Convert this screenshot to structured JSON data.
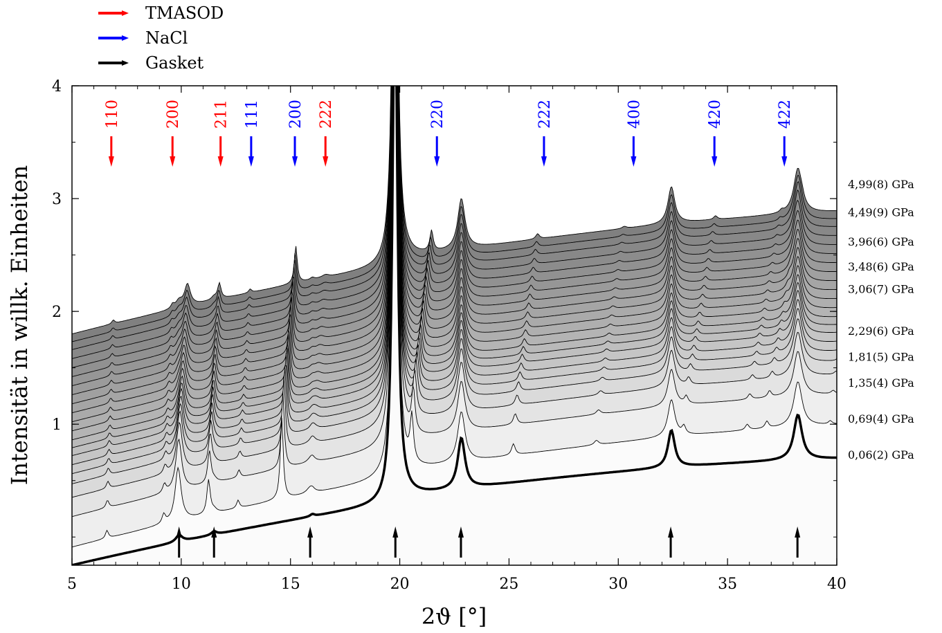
{
  "chart_data": {
    "type": "line",
    "xlabel": "2ϑ [°]",
    "ylabel": "Intensität in willk. Einheiten",
    "xlim": [
      5,
      40
    ],
    "ylim": [
      -0.25,
      4
    ],
    "x_ticks": [
      5,
      10,
      15,
      20,
      25,
      30,
      35,
      40
    ],
    "y_ticks": [
      1,
      2,
      3,
      4
    ],
    "legend": {
      "placement": "top-left",
      "entries": [
        {
          "name": "TMASOD",
          "color": "#ff0000"
        },
        {
          "name": "NaCl",
          "color": "#0000ff"
        },
        {
          "name": "Gasket",
          "color": "#000000"
        }
      ]
    },
    "reflections": [
      {
        "hkl": "110",
        "x": 6.8,
        "phase": "TMASOD",
        "color": "#ff0000"
      },
      {
        "hkl": "200",
        "x": 9.6,
        "phase": "TMASOD",
        "color": "#ff0000"
      },
      {
        "hkl": "211",
        "x": 11.8,
        "phase": "TMASOD",
        "color": "#ff0000"
      },
      {
        "hkl": "111",
        "x": 13.2,
        "phase": "NaCl",
        "color": "#0000ff"
      },
      {
        "hkl": "200",
        "x": 15.2,
        "phase": "NaCl",
        "color": "#0000ff"
      },
      {
        "hkl": "222",
        "x": 16.6,
        "phase": "TMASOD",
        "color": "#ff0000"
      },
      {
        "hkl": "220",
        "x": 21.7,
        "phase": "NaCl",
        "color": "#0000ff"
      },
      {
        "hkl": "222",
        "x": 26.6,
        "phase": "NaCl",
        "color": "#0000ff"
      },
      {
        "hkl": "400",
        "x": 30.7,
        "phase": "NaCl",
        "color": "#0000ff"
      },
      {
        "hkl": "420",
        "x": 34.4,
        "phase": "NaCl",
        "color": "#0000ff"
      },
      {
        "hkl": "422",
        "x": 37.6,
        "phase": "NaCl",
        "color": "#0000ff"
      }
    ],
    "gasket_markers": [
      9.9,
      11.5,
      15.9,
      19.8,
      22.8,
      32.4,
      38.2
    ],
    "pressure_labels": [
      {
        "text": "4,99(8) GPa",
        "y": 3.13
      },
      {
        "text": "4,49(9) GPa",
        "y": 2.88
      },
      {
        "text": "3,96(6) GPa",
        "y": 2.62
      },
      {
        "text": "3,48(6) GPa",
        "y": 2.4
      },
      {
        "text": "3,06(7) GPa",
        "y": 2.2
      },
      {
        "text": "2,29(6) GPa",
        "y": 1.83
      },
      {
        "text": "1,81(5) GPa",
        "y": 1.6
      },
      {
        "text": "1,35(4) GPa",
        "y": 1.37
      },
      {
        "text": "0,69(4) GPa",
        "y": 1.05
      },
      {
        "text": "0,06(2) GPa",
        "y": 0.73
      }
    ],
    "series": [
      {
        "name": "Gasket",
        "offset": 0.0,
        "shift": 0.0,
        "reflection_scale": 0.0,
        "color": "#000000"
      },
      {
        "name": "0,06(2) GPa",
        "offset": 0.16,
        "shift": 0.0,
        "reflection_scale": 1.0,
        "fill": "#fbfbfb"
      },
      {
        "name": "",
        "offset": 0.43,
        "shift": 0.05,
        "reflection_scale": 0.95,
        "fill": "#eeeeee"
      },
      {
        "name": "0,69(4) GPa",
        "offset": 0.6,
        "shift": 0.1,
        "reflection_scale": 0.9,
        "fill": "#e4e4e4"
      },
      {
        "name": "",
        "offset": 0.72,
        "shift": 0.14,
        "reflection_scale": 0.85,
        "fill": "#dadada"
      },
      {
        "name": "1,35(4) GPa",
        "offset": 0.81,
        "shift": 0.18,
        "reflection_scale": 0.8,
        "fill": "#d2d2d2"
      },
      {
        "name": "",
        "offset": 0.89,
        "shift": 0.21,
        "reflection_scale": 0.78,
        "fill": "#cbcbcb"
      },
      {
        "name": "1,81(5) GPa",
        "offset": 0.97,
        "shift": 0.24,
        "reflection_scale": 0.75,
        "fill": "#c5c5c5"
      },
      {
        "name": "",
        "offset": 1.04,
        "shift": 0.27,
        "reflection_scale": 0.72,
        "fill": "#bfbfbf"
      },
      {
        "name": "2,29(6) GPa",
        "offset": 1.11,
        "shift": 0.3,
        "reflection_scale": 0.7,
        "fill": "#b9b9b9"
      },
      {
        "name": "",
        "offset": 1.19,
        "shift": 0.33,
        "reflection_scale": 0.68,
        "fill": "#b4b4b4"
      },
      {
        "name": "",
        "offset": 1.27,
        "shift": 0.36,
        "reflection_scale": 0.66,
        "fill": "#afafaf"
      },
      {
        "name": "3,06(7) GPa",
        "offset": 1.35,
        "shift": 0.39,
        "reflection_scale": 0.64,
        "fill": "#aaaaaa"
      },
      {
        "name": "",
        "offset": 1.43,
        "shift": 0.42,
        "reflection_scale": 0.62,
        "fill": "#a5a5a5"
      },
      {
        "name": "3,48(6) GPa",
        "offset": 1.51,
        "shift": 0.45,
        "reflection_scale": 0.6,
        "fill": "#a0a0a0"
      },
      {
        "name": "",
        "offset": 1.59,
        "shift": 0.48,
        "reflection_scale": 0.58,
        "fill": "#9b9b9b"
      },
      {
        "name": "3,96(6) GPa",
        "offset": 1.67,
        "shift": 0.51,
        "reflection_scale": 0.56,
        "fill": "#969696"
      },
      {
        "name": "",
        "offset": 1.75,
        "shift": 0.54,
        "reflection_scale": 0.54,
        "fill": "#919191"
      },
      {
        "name": "",
        "offset": 1.83,
        "shift": 0.57,
        "reflection_scale": 0.52,
        "fill": "#8c8c8c"
      },
      {
        "name": "4,49(9) GPa",
        "offset": 1.91,
        "shift": 0.6,
        "reflection_scale": 0.5,
        "fill": "#888888"
      },
      {
        "name": "",
        "offset": 1.98,
        "shift": 0.63,
        "reflection_scale": 0.48,
        "fill": "#848484"
      },
      {
        "name": "4,99(8) GPa",
        "offset": 2.05,
        "shift": 0.66,
        "reflection_scale": 0.46,
        "fill": "#808080"
      }
    ]
  }
}
